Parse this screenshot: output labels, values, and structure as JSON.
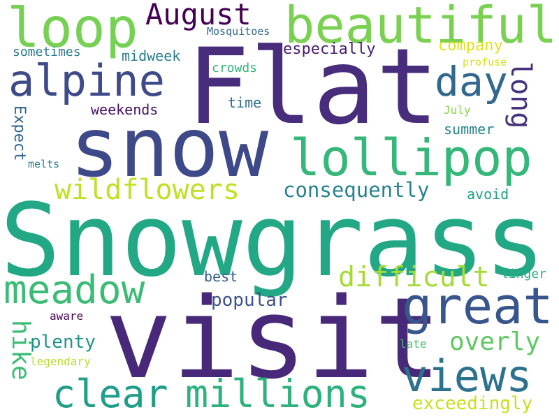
{
  "words": [
    {
      "text": "Snowgrass",
      "color": "#22a884"
    },
    {
      "text": "Flat",
      "color": "#472d7b"
    },
    {
      "text": "visit",
      "color": "#482878"
    },
    {
      "text": "snow",
      "color": "#3e4989"
    },
    {
      "text": "beautiful",
      "color": "#7ad151"
    },
    {
      "text": "loop",
      "color": "#75d054"
    },
    {
      "text": "lollipop",
      "color": "#35b779"
    },
    {
      "text": "alpine",
      "color": "#3e4a89"
    },
    {
      "text": "great",
      "color": "#39568c"
    },
    {
      "text": "meadow",
      "color": "#3bbb75"
    },
    {
      "text": "views",
      "color": "#2c728e"
    },
    {
      "text": "clear",
      "color": "#1f9e89"
    },
    {
      "text": "millions",
      "color": "#2db27d"
    },
    {
      "text": "wildflowers",
      "color": "#c2df23"
    },
    {
      "text": "day",
      "color": "#31688e"
    },
    {
      "text": "August",
      "color": "#440154"
    },
    {
      "text": "difficult",
      "color": "#a5db36"
    },
    {
      "text": "consequently",
      "color": "#26828e"
    },
    {
      "text": "long",
      "color": "#46327e"
    },
    {
      "text": "hike",
      "color": "#3bbb75"
    },
    {
      "text": "overly",
      "color": "#5ec962"
    },
    {
      "text": "exceedingly",
      "color": "#c8e020"
    },
    {
      "text": "popular",
      "color": "#3b528b"
    },
    {
      "text": "plenty",
      "color": "#20928c"
    },
    {
      "text": "Expect",
      "color": "#33638d"
    },
    {
      "text": "company",
      "color": "#dde318"
    },
    {
      "text": "midweek",
      "color": "#287d8e"
    },
    {
      "text": "especially",
      "color": "#481d6f"
    },
    {
      "text": "weekends",
      "color": "#471063"
    },
    {
      "text": "sometimes",
      "color": "#2a788e"
    },
    {
      "text": "crowds",
      "color": "#2fb47c"
    },
    {
      "text": "time",
      "color": "#2e6e8e"
    },
    {
      "text": "summer",
      "color": "#25838e"
    },
    {
      "text": "best",
      "color": "#355f8d"
    },
    {
      "text": "avoid",
      "color": "#1fa187"
    },
    {
      "text": "linger",
      "color": "#29af7f"
    },
    {
      "text": "Mosquitoes",
      "color": "#31688e"
    },
    {
      "text": "profuse",
      "color": "#d8e219"
    },
    {
      "text": "July",
      "color": "#86d549"
    },
    {
      "text": "melts",
      "color": "#26828e"
    },
    {
      "text": "aware",
      "color": "#440154"
    },
    {
      "text": "late",
      "color": "#4ac16d"
    },
    {
      "text": "legendary",
      "color": "#b5de2b"
    }
  ]
}
